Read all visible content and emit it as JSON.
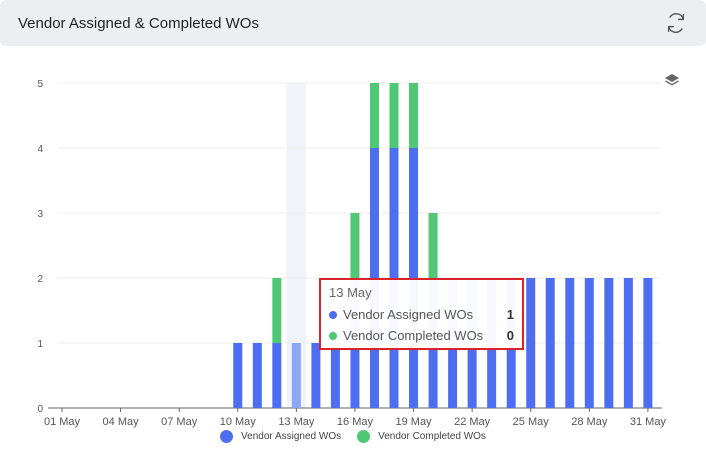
{
  "header": {
    "title": "Vendor Assigned & Completed WOs"
  },
  "icons": {
    "refresh": "refresh-icon",
    "layers": "layers-icon"
  },
  "colors": {
    "assigned": "#4e6ef2",
    "completed": "#4fc774",
    "highlight": "#8ea6f7"
  },
  "chart_data": {
    "type": "bar",
    "stacked": true,
    "title": "Vendor Assigned & Completed WOs",
    "xlabel": "",
    "ylabel": "",
    "ylim": [
      0,
      5
    ],
    "yticks": [
      0,
      1,
      2,
      3,
      4,
      5
    ],
    "grid": true,
    "legend_position": "bottom",
    "categories": [
      "01 May",
      "02 May",
      "03 May",
      "04 May",
      "05 May",
      "06 May",
      "07 May",
      "08 May",
      "09 May",
      "10 May",
      "11 May",
      "12 May",
      "13 May",
      "14 May",
      "15 May",
      "16 May",
      "17 May",
      "18 May",
      "19 May",
      "20 May",
      "21 May",
      "22 May",
      "23 May",
      "24 May",
      "25 May",
      "26 May",
      "27 May",
      "28 May",
      "29 May",
      "30 May",
      "31 May"
    ],
    "tick_labels": [
      "01 May",
      "04 May",
      "07 May",
      "10 May",
      "13 May",
      "16 May",
      "19 May",
      "22 May",
      "25 May",
      "28 May",
      "31 May"
    ],
    "series": [
      {
        "name": "Vendor Assigned WOs",
        "values": [
          0,
          0,
          0,
          0,
          0,
          0,
          0,
          0,
          0,
          1,
          1,
          1,
          1,
          1,
          1,
          2,
          4,
          4,
          4,
          2,
          2,
          2,
          2,
          2,
          2,
          2,
          2,
          2,
          2,
          2,
          2
        ]
      },
      {
        "name": "Vendor Completed WOs",
        "values": [
          0,
          0,
          0,
          0,
          0,
          0,
          0,
          0,
          0,
          0,
          0,
          1,
          0,
          0,
          0,
          1,
          1,
          1,
          1,
          1,
          0,
          0,
          0,
          0,
          0,
          0,
          0,
          0,
          0,
          0,
          0
        ]
      }
    ],
    "highlighted_category": "13 May"
  },
  "tooltip": {
    "date": "13 May",
    "rows": [
      {
        "name": "Vendor Assigned WOs",
        "value": "1"
      },
      {
        "name": "Vendor Completed WOs",
        "value": "0"
      }
    ]
  }
}
